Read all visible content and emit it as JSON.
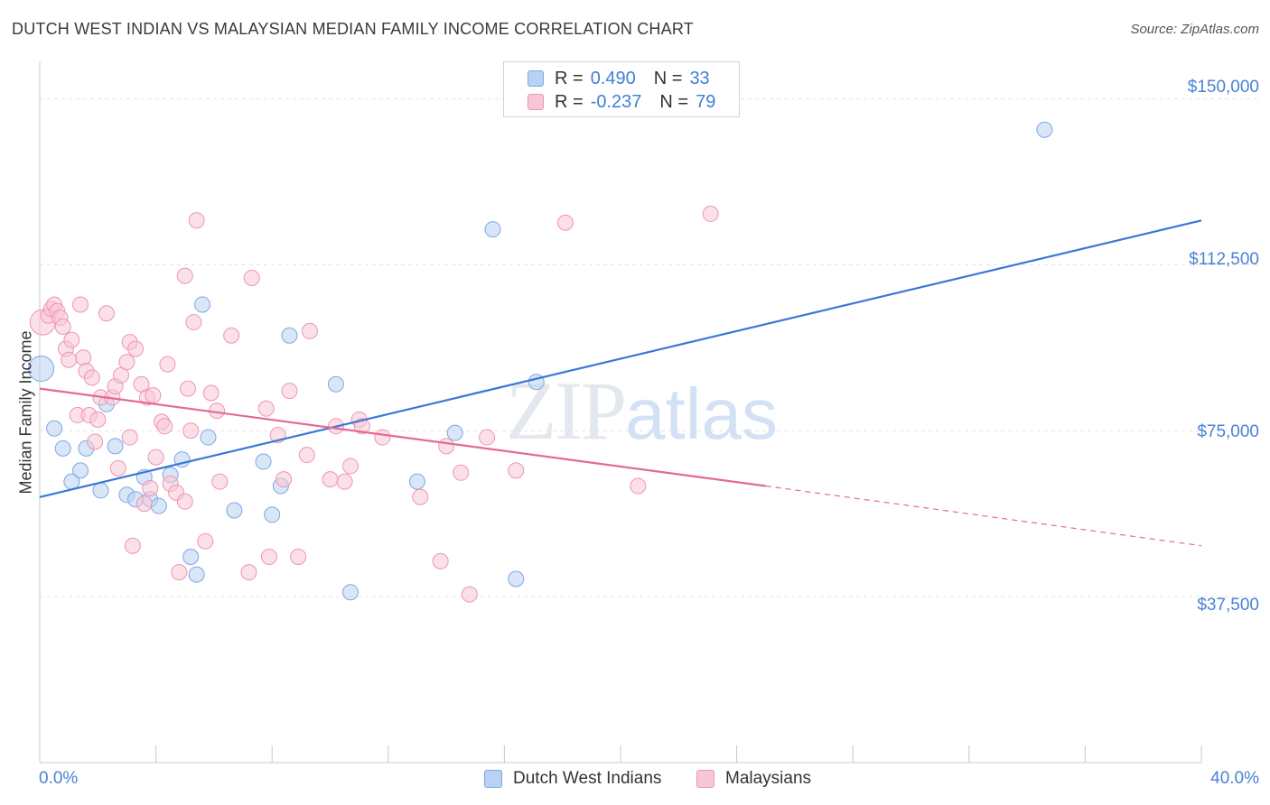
{
  "title": "DUTCH WEST INDIAN VS MALAYSIAN MEDIAN FAMILY INCOME CORRELATION CHART",
  "source": "Source: ZipAtlas.com",
  "watermark": {
    "zip": "ZIP",
    "atlas": "atlas"
  },
  "legend_stats": [
    {
      "r_label": "R =",
      "r_value": "0.490",
      "n_label": "N =",
      "n_value": "33"
    },
    {
      "r_label": "R =",
      "r_value": "-0.237",
      "n_label": "N =",
      "n_value": "79"
    }
  ],
  "y_tick_labels": [
    "$150,000",
    "$112,500",
    "$75,000",
    "$37,500"
  ],
  "x_tick_labels": {
    "left": "0.0%",
    "right": "40.0%"
  },
  "colors": {
    "blue": "#3a78d6",
    "pink": "#e46a93",
    "blue_fill": "#b9d1f3",
    "pink_fill": "#f8c7d6",
    "grid": "#e2e2e2"
  },
  "chart_data": {
    "type": "scatter",
    "title": "DUTCH WEST INDIAN VS MALAYSIAN MEDIAN FAMILY INCOME CORRELATION CHART",
    "xlabel": "",
    "ylabel": "Median Family Income",
    "xlim": [
      0,
      40
    ],
    "ylim": [
      0,
      156000
    ],
    "yticks": [
      37500,
      75000,
      112500,
      150000
    ],
    "grid": true,
    "legend_position": "bottom",
    "series": [
      {
        "name": "Dutch West Indians",
        "color": "#3a78d6",
        "r": 0.49,
        "n": 33,
        "trend": {
          "x0": 0,
          "y0": 60000,
          "x1": 40,
          "y1": 122500
        },
        "points": [
          [
            0.05,
            89000
          ],
          [
            0.5,
            75500
          ],
          [
            0.8,
            71000
          ],
          [
            1.1,
            63500
          ],
          [
            1.4,
            66000
          ],
          [
            1.6,
            71000
          ],
          [
            2.1,
            61500
          ],
          [
            2.3,
            81000
          ],
          [
            2.6,
            71500
          ],
          [
            3.0,
            60500
          ],
          [
            3.3,
            59500
          ],
          [
            3.6,
            64500
          ],
          [
            3.8,
            59500
          ],
          [
            4.1,
            58000
          ],
          [
            4.5,
            65000
          ],
          [
            4.9,
            68500
          ],
          [
            5.2,
            46500
          ],
          [
            5.4,
            42500
          ],
          [
            5.6,
            103500
          ],
          [
            5.8,
            73500
          ],
          [
            6.7,
            57000
          ],
          [
            7.7,
            68000
          ],
          [
            8.0,
            56000
          ],
          [
            8.3,
            62500
          ],
          [
            8.6,
            96500
          ],
          [
            10.2,
            85500
          ],
          [
            10.7,
            38500
          ],
          [
            13.0,
            63500
          ],
          [
            14.3,
            74500
          ],
          [
            15.6,
            120500
          ],
          [
            16.4,
            41500
          ],
          [
            17.1,
            86000
          ],
          [
            34.6,
            143000
          ]
        ]
      },
      {
        "name": "Malaysians",
        "color": "#e46a93",
        "r": -0.237,
        "n": 79,
        "trend": {
          "x0": 0,
          "y0": 84500,
          "x1": 25,
          "y1": 62500
        },
        "trend_dashed": {
          "x0": 25,
          "y0": 62500,
          "x1": 40,
          "y1": 49000
        },
        "points": [
          [
            0.1,
            99500
          ],
          [
            0.3,
            101000
          ],
          [
            0.4,
            102500
          ],
          [
            0.5,
            103500
          ],
          [
            0.6,
            102000
          ],
          [
            0.7,
            100500
          ],
          [
            0.8,
            98500
          ],
          [
            0.9,
            93500
          ],
          [
            1.0,
            91000
          ],
          [
            1.1,
            95500
          ],
          [
            1.3,
            78500
          ],
          [
            1.4,
            103500
          ],
          [
            1.5,
            91500
          ],
          [
            1.6,
            88500
          ],
          [
            1.7,
            78500
          ],
          [
            1.8,
            87000
          ],
          [
            1.9,
            72500
          ],
          [
            2.0,
            77500
          ],
          [
            2.1,
            82500
          ],
          [
            2.3,
            101500
          ],
          [
            2.5,
            82500
          ],
          [
            2.6,
            85000
          ],
          [
            2.7,
            66500
          ],
          [
            2.8,
            87500
          ],
          [
            3.0,
            90500
          ],
          [
            3.1,
            73500
          ],
          [
            3.1,
            95000
          ],
          [
            3.2,
            49000
          ],
          [
            3.3,
            93500
          ],
          [
            3.5,
            85500
          ],
          [
            3.6,
            58500
          ],
          [
            3.7,
            82500
          ],
          [
            3.8,
            62000
          ],
          [
            3.9,
            83000
          ],
          [
            4.0,
            69000
          ],
          [
            4.2,
            77000
          ],
          [
            4.3,
            76000
          ],
          [
            4.4,
            90000
          ],
          [
            4.5,
            63000
          ],
          [
            4.7,
            61000
          ],
          [
            4.8,
            43000
          ],
          [
            5.0,
            59000
          ],
          [
            5.0,
            110000
          ],
          [
            5.1,
            84500
          ],
          [
            5.2,
            75000
          ],
          [
            5.3,
            99500
          ],
          [
            5.4,
            122500
          ],
          [
            5.7,
            50000
          ],
          [
            5.9,
            83500
          ],
          [
            6.1,
            79500
          ],
          [
            6.2,
            63500
          ],
          [
            6.6,
            96500
          ],
          [
            7.2,
            43000
          ],
          [
            7.3,
            109500
          ],
          [
            7.8,
            80000
          ],
          [
            7.9,
            46500
          ],
          [
            8.2,
            74000
          ],
          [
            8.4,
            64000
          ],
          [
            8.6,
            84000
          ],
          [
            8.9,
            46500
          ],
          [
            9.2,
            69500
          ],
          [
            9.3,
            97500
          ],
          [
            10.0,
            64000
          ],
          [
            10.2,
            76000
          ],
          [
            10.5,
            63500
          ],
          [
            10.7,
            67000
          ],
          [
            11.0,
            77500
          ],
          [
            11.1,
            76000
          ],
          [
            11.8,
            73500
          ],
          [
            13.1,
            60000
          ],
          [
            13.8,
            45500
          ],
          [
            14.0,
            71500
          ],
          [
            14.5,
            65500
          ],
          [
            14.8,
            38000
          ],
          [
            15.4,
            73500
          ],
          [
            16.4,
            66000
          ],
          [
            18.1,
            122000
          ],
          [
            20.6,
            62500
          ],
          [
            23.1,
            124000
          ]
        ]
      }
    ]
  },
  "bottom_legend": [
    "Dutch West Indians",
    "Malaysians"
  ]
}
